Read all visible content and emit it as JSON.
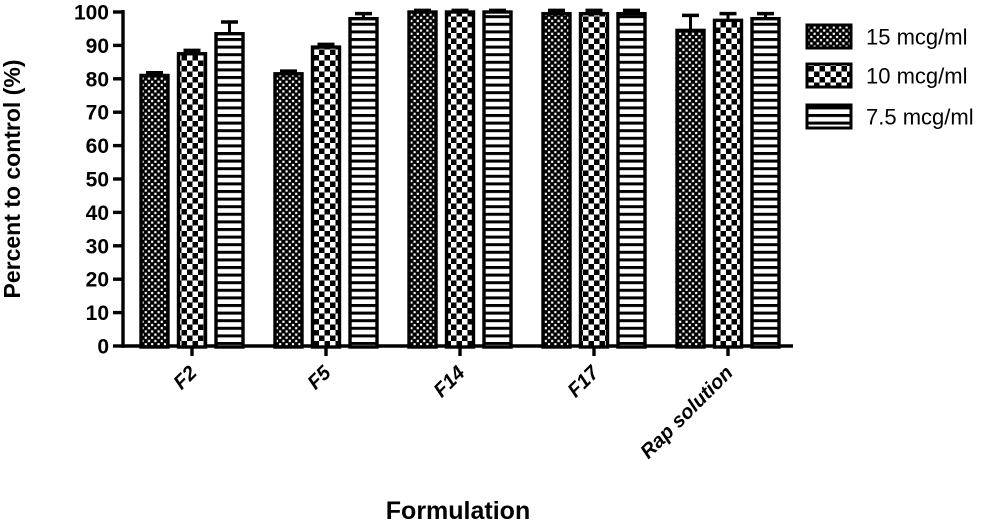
{
  "figure": {
    "background_color": "#ffffff",
    "ink_color": "#000000"
  },
  "chart_data": {
    "type": "bar",
    "title": "",
    "xlabel": "Formulation",
    "ylabel": "Percent to control (%)",
    "ylim": [
      0,
      100
    ],
    "ytick_step": 10,
    "yticks": [
      0,
      10,
      20,
      30,
      40,
      50,
      60,
      70,
      80,
      90,
      100
    ],
    "grid": false,
    "legend_position": "right",
    "categories": [
      "F2",
      "F5",
      "F14",
      "F17",
      "Rap solution"
    ],
    "series": [
      {
        "name": "15 mcg/ml",
        "pattern": "fine-checker",
        "values": [
          81,
          81.5,
          100,
          99.5,
          94.5
        ],
        "errors": [
          0.8,
          0.8,
          0.5,
          1,
          4.5
        ]
      },
      {
        "name": "10 mcg/ml",
        "pattern": "coarse-checker",
        "values": [
          87.5,
          89.5,
          100,
          99.5,
          97.5
        ],
        "errors": [
          1,
          0.8,
          0.5,
          1,
          2
        ]
      },
      {
        "name": "7.5 mcg/ml",
        "pattern": "h-stripes",
        "values": [
          93.5,
          98,
          100,
          99.5,
          98
        ],
        "errors": [
          3.5,
          1.5,
          0.5,
          1,
          1.5
        ]
      }
    ]
  }
}
